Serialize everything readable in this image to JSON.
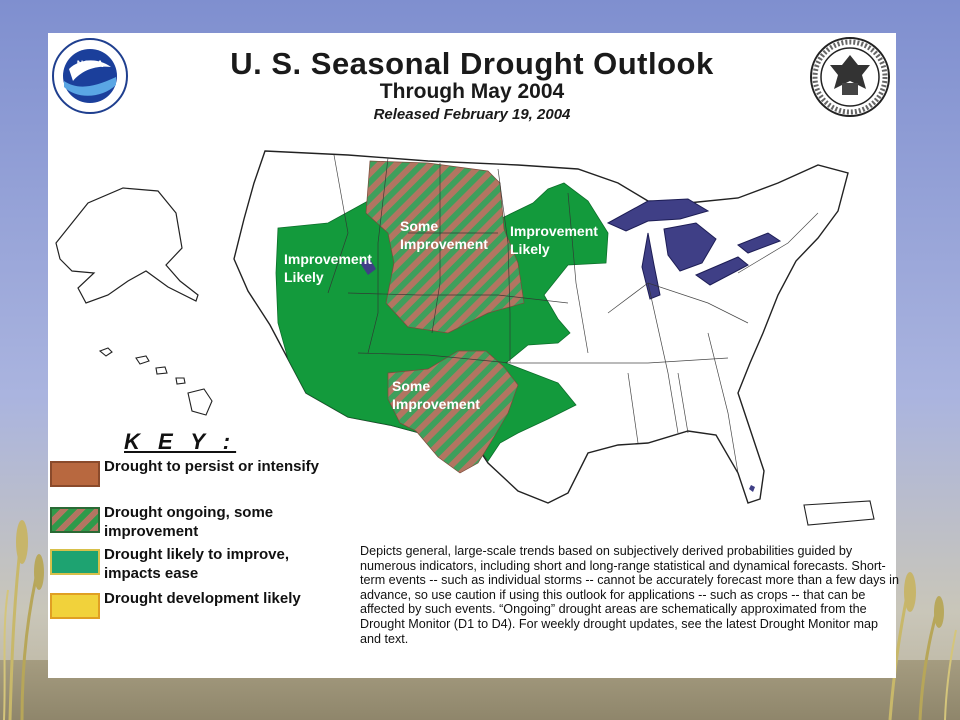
{
  "title": "U. S. Seasonal Drought Outlook",
  "subtitle": "Through May 2004",
  "release": "Released February 19, 2004",
  "logos": {
    "left": "NOAA",
    "right": "Department of Commerce seal"
  },
  "map": {
    "labels": {
      "west": [
        "Improvement",
        "Likely"
      ],
      "plains_north": [
        "Some",
        "Improvement"
      ],
      "midwest": [
        "Improvement",
        "Likely"
      ],
      "southwest": [
        "Some",
        "Improvement"
      ]
    }
  },
  "key": {
    "heading": "K E Y :",
    "items": [
      {
        "text": "Drought to persist or intensify",
        "color": "#b8683f"
      },
      {
        "text": "Drought ongoing, some improvement",
        "color": "#2e9a4a"
      },
      {
        "text": "Drought likely to improve, impacts ease",
        "color": "#1ea371"
      },
      {
        "text": "Drought development likely",
        "color": "#f1d23b"
      }
    ]
  },
  "description": "Depicts general, large-scale trends based on subjectively derived probabilities guided by numerous indicators, including short and long-range statistical and dynamical forecasts. Short-term events -- such as individual storms -- cannot be accurately forecast more than a few days in advance, so use caution if using this outlook for applications -- such as crops -- that can be affected by such events. “Ongoing” drought areas are schematically approximated from the Drought Monitor (D1 to D4). For weekly drought updates, see the latest Drought Monitor map and text.",
  "colors": {
    "improve_green": "#149a3c",
    "hatch_brown": "#a9735e",
    "great_lakes": "#3f3f86",
    "slide_bg": "#8f9bd3"
  }
}
